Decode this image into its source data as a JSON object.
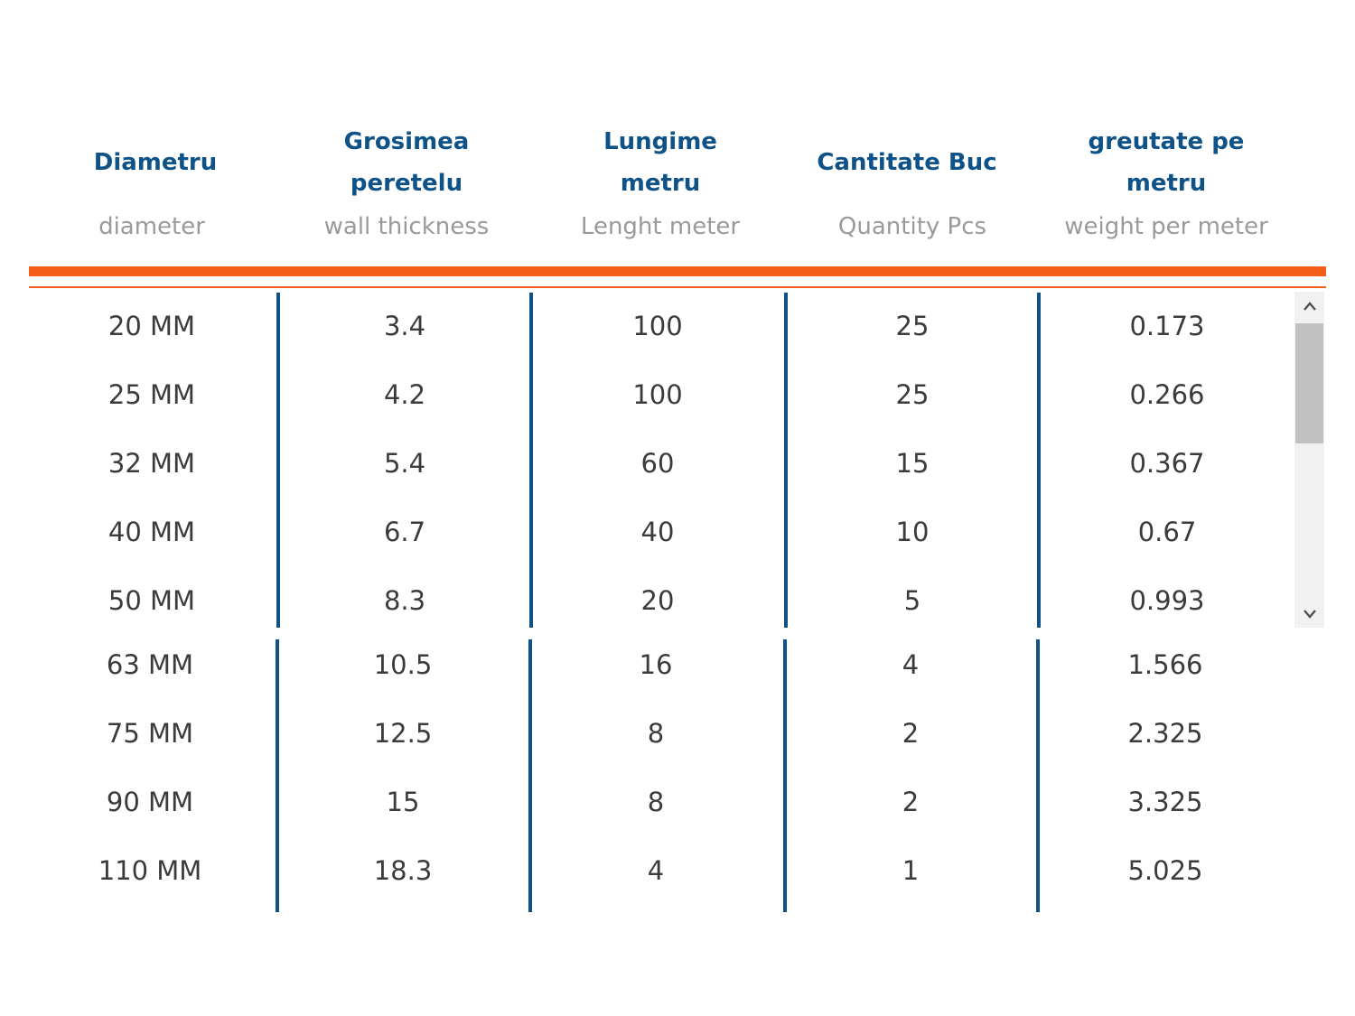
{
  "table": {
    "columns": [
      {
        "title_line1": "Diametru",
        "title_line2": "",
        "subtitle": "diameter"
      },
      {
        "title_line1": "Grosimea",
        "title_line2": "peretelu",
        "subtitle": "wall thickness"
      },
      {
        "title_line1": "Lungime",
        "title_line2": "metru",
        "subtitle": "Lenght meter"
      },
      {
        "title_line1": "Cantitate Buc",
        "title_line2": "",
        "subtitle": "Quantity Pcs"
      },
      {
        "title_line1": "greutate pe",
        "title_line2": "metru",
        "subtitle": "weight per meter"
      }
    ],
    "rows": [
      [
        "20 MM",
        "3.4",
        "100",
        "25",
        "0.173"
      ],
      [
        "25 MM",
        "4.2",
        "100",
        "25",
        "0.266"
      ],
      [
        "32 MM",
        "5.4",
        "60",
        "15",
        "0.367"
      ],
      [
        "40 MM",
        "6.7",
        "40",
        "10",
        "0.67"
      ],
      [
        "50 MM",
        "8.3",
        "20",
        "5",
        "0.993"
      ],
      [
        "63 MM",
        "10.5",
        "16",
        "4",
        "1.566"
      ],
      [
        "75 MM",
        "12.5",
        "8",
        "2",
        "2.325"
      ],
      [
        "90 MM",
        "15",
        "8",
        "2",
        "3.325"
      ],
      [
        "110 MM",
        "18.3",
        "4",
        "1",
        "5.025"
      ]
    ]
  },
  "scrollbar": {
    "up_icon": "chevron-up-icon",
    "down_icon": "chevron-down-icon"
  },
  "colors": {
    "header_text": "#0e5288",
    "accent": "#f25c17",
    "divider": "#0e5288",
    "body_text": "#3b3b3b",
    "subtitle_text": "#9a9a9a"
  }
}
